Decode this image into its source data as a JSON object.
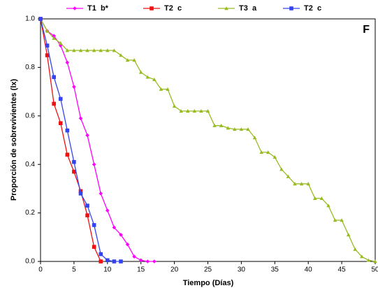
{
  "chart_data": {
    "type": "line",
    "panel_label": "F",
    "xlabel": "Tiempo (Días)",
    "ylabel": "Proporción de sobrevivientes (lx)",
    "xlim": [
      0,
      50
    ],
    "xticks": [
      0,
      5,
      10,
      15,
      20,
      25,
      30,
      35,
      40,
      45,
      50
    ],
    "ylim": [
      0,
      1
    ],
    "yticks": [
      {
        "value": 0,
        "label": "0.0"
      },
      0.2,
      0.4,
      0.6,
      0.8,
      {
        "value": 1,
        "label": "1.0"
      }
    ],
    "series": [
      {
        "name": "T1  b*",
        "color": "#ff00ff",
        "marker": "diamond",
        "x": [
          0,
          1,
          2,
          3,
          4,
          5,
          6,
          7,
          8,
          9,
          10,
          11,
          12,
          13,
          14,
          15,
          16,
          17
        ],
        "values": [
          1.0,
          0.95,
          0.93,
          0.89,
          0.82,
          0.72,
          0.59,
          0.52,
          0.4,
          0.28,
          0.21,
          0.14,
          0.11,
          0.07,
          0.02,
          0.005,
          0,
          0
        ]
      },
      {
        "name": "T2  c",
        "color": "#ee1111",
        "marker": "square",
        "x": [
          0,
          1,
          2,
          3,
          4,
          5,
          6,
          7,
          8,
          9
        ],
        "values": [
          1.0,
          0.85,
          0.65,
          0.57,
          0.44,
          0.37,
          0.29,
          0.19,
          0.06,
          0
        ]
      },
      {
        "name": "T3  a",
        "color": "#99bb22",
        "marker": "triangle",
        "x": [
          0,
          1,
          2,
          3,
          4,
          5,
          6,
          7,
          8,
          9,
          10,
          11,
          12,
          13,
          14,
          15,
          16,
          17,
          18,
          19,
          20,
          21,
          22,
          23,
          24,
          25,
          26,
          27,
          28,
          29,
          30,
          31,
          32,
          33,
          34,
          35,
          36,
          37,
          38,
          39,
          40,
          41,
          42,
          43,
          44,
          45,
          46,
          47,
          48,
          49,
          50
        ],
        "values": [
          1.0,
          0.95,
          0.92,
          0.9,
          0.87,
          0.87,
          0.87,
          0.87,
          0.87,
          0.87,
          0.87,
          0.87,
          0.85,
          0.83,
          0.83,
          0.78,
          0.76,
          0.75,
          0.71,
          0.71,
          0.64,
          0.62,
          0.62,
          0.62,
          0.62,
          0.62,
          0.56,
          0.56,
          0.55,
          0.545,
          0.545,
          0.545,
          0.51,
          0.45,
          0.45,
          0.43,
          0.38,
          0.35,
          0.32,
          0.32,
          0.32,
          0.26,
          0.26,
          0.23,
          0.17,
          0.17,
          0.11,
          0.05,
          0.02,
          0.005,
          0
        ]
      },
      {
        "name": "T2  c",
        "color": "#3344ee",
        "marker": "square",
        "x": [
          0,
          1,
          2,
          3,
          4,
          5,
          6,
          7,
          8,
          9,
          10,
          11,
          12
        ],
        "values": [
          1.0,
          0.89,
          0.76,
          0.67,
          0.54,
          0.41,
          0.28,
          0.23,
          0.15,
          0.03,
          0.005,
          0,
          0
        ]
      }
    ]
  }
}
